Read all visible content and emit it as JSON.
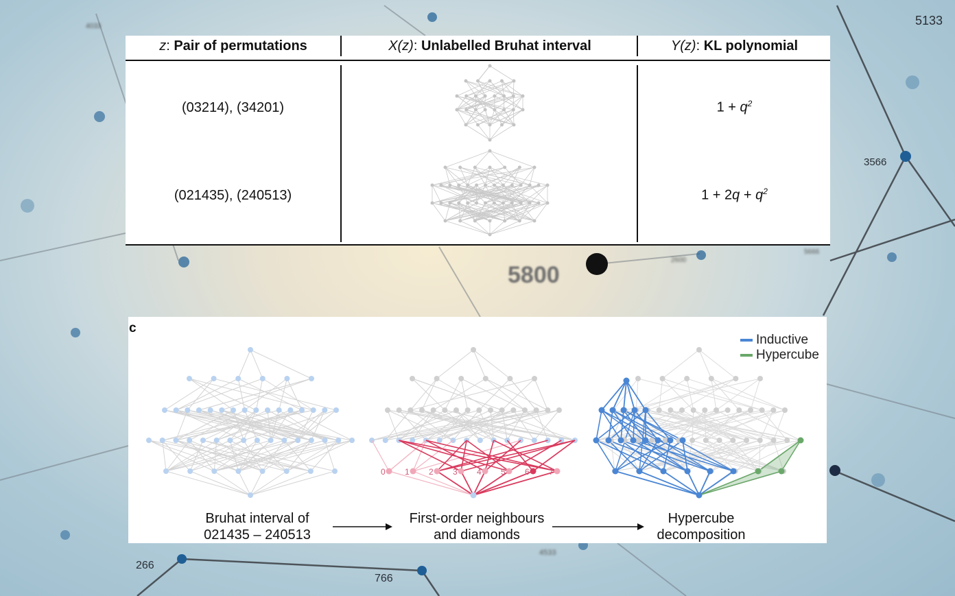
{
  "background": {
    "labels": [
      "5133",
      "3566",
      "5800",
      "266",
      "766"
    ],
    "blurred_labels": [
      "4033",
      "5666",
      "2600",
      "4533"
    ]
  },
  "table": {
    "headers": [
      {
        "italic": "z",
        "sep": ": ",
        "bold": "Pair of permutations"
      },
      {
        "italic": "X(z)",
        "sep": ": ",
        "bold": "Unlabelled Bruhat interval"
      },
      {
        "italic": "Y(z)",
        "sep": ": ",
        "bold": "KL polynomial"
      }
    ],
    "rows": [
      {
        "pair": "(03214), (34201)",
        "poly_prefix": "1 + ",
        "poly_var": "q",
        "poly_exp": "2",
        "poly_rest": "",
        "poly_var2": "",
        "poly_exp2": ""
      },
      {
        "pair": "(021435), (240513)",
        "poly_prefix": "1 + 2",
        "poly_var": "q",
        "poly_exp": "",
        "poly_rest": " + ",
        "poly_var2": "q",
        "poly_exp2": "2"
      }
    ]
  },
  "panel_c": {
    "label": "c",
    "legend": [
      {
        "name": "Inductive",
        "color": "#4a86d4"
      },
      {
        "name": "Hypercube",
        "color": "#6aa86a"
      }
    ],
    "captions": [
      {
        "line1": "Bruhat interval of",
        "line2": "021435 – 240513"
      },
      {
        "line1": "First-order neighbours",
        "line2": "and diamonds"
      },
      {
        "line1": "Hypercube",
        "line2": "decomposition"
      }
    ],
    "node_numbers": [
      "0",
      "1",
      "2",
      "3",
      "4",
      "5",
      "6",
      "7"
    ],
    "colors": {
      "light_blue": "#b9d2f0",
      "gray": "#cfcfcf",
      "red": "#d93a5e",
      "pink": "#f2b5c3",
      "blue": "#4a86d4",
      "green": "#6aa86a"
    }
  }
}
